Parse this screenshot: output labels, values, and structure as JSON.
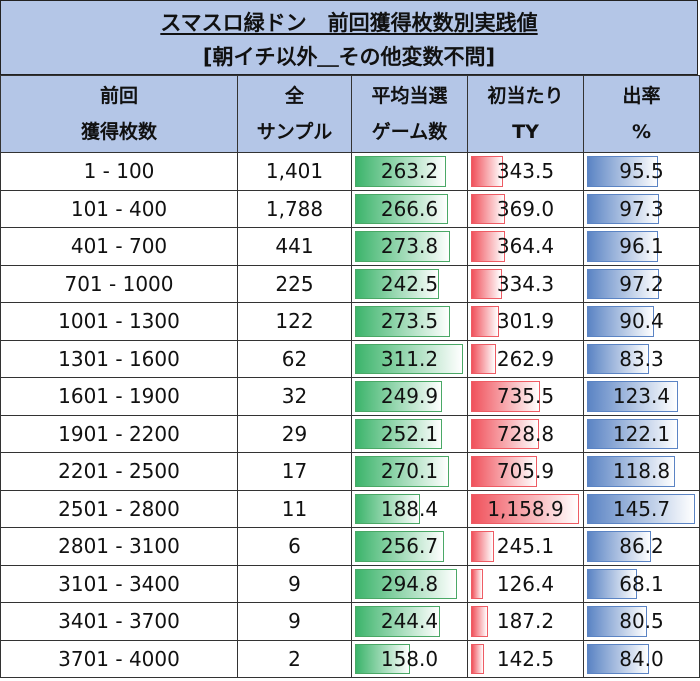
{
  "title": {
    "line1": "スマスロ緑ドン　前回獲得枚数別実践値",
    "line2": "[朝イチ以外＿その他変数不問]"
  },
  "headers": [
    [
      "前回",
      "獲得枚数"
    ],
    [
      "全",
      "サンプル"
    ],
    [
      "平均当選",
      "ゲーム数"
    ],
    [
      "初当たり",
      "TY"
    ],
    [
      "出率",
      "%"
    ]
  ],
  "colors": {
    "header_bg": "#b4c6e7",
    "green_bar": "#3cb46b",
    "red_bar": "#f0525c",
    "blue_bar": "#5b84c4"
  },
  "rows": [
    {
      "range": "1 - 100",
      "samples": "1,401",
      "games": "263.2",
      "ty": "343.5",
      "rate": "95.5"
    },
    {
      "range": "101 - 400",
      "samples": "1,788",
      "games": "266.6",
      "ty": "369.0",
      "rate": "97.3"
    },
    {
      "range": "401 - 700",
      "samples": "441",
      "games": "273.8",
      "ty": "364.4",
      "rate": "96.1"
    },
    {
      "range": "701 - 1000",
      "samples": "225",
      "games": "242.5",
      "ty": "334.3",
      "rate": "97.2"
    },
    {
      "range": "1001 - 1300",
      "samples": "122",
      "games": "273.5",
      "ty": "301.9",
      "rate": "90.4"
    },
    {
      "range": "1301 - 1600",
      "samples": "62",
      "games": "311.2",
      "ty": "262.9",
      "rate": "83.3"
    },
    {
      "range": "1601 - 1900",
      "samples": "32",
      "games": "249.9",
      "ty": "735.5",
      "rate": "123.4"
    },
    {
      "range": "1901 - 2200",
      "samples": "29",
      "games": "252.1",
      "ty": "728.8",
      "rate": "122.1"
    },
    {
      "range": "2201 - 2500",
      "samples": "17",
      "games": "270.1",
      "ty": "705.9",
      "rate": "118.8"
    },
    {
      "range": "2501 - 2800",
      "samples": "11",
      "games": "188.4",
      "ty": "1,158.9",
      "rate": "145.7"
    },
    {
      "range": "2801 - 3100",
      "samples": "6",
      "games": "256.7",
      "ty": "245.1",
      "rate": "86.2"
    },
    {
      "range": "3101 - 3400",
      "samples": "9",
      "games": "294.8",
      "ty": "126.4",
      "rate": "68.1"
    },
    {
      "range": "3401 - 3700",
      "samples": "9",
      "games": "244.4",
      "ty": "187.2",
      "rate": "80.5"
    },
    {
      "range": "3701 - 4000",
      "samples": "2",
      "games": "158.0",
      "ty": "142.5",
      "rate": "84.0"
    }
  ]
}
